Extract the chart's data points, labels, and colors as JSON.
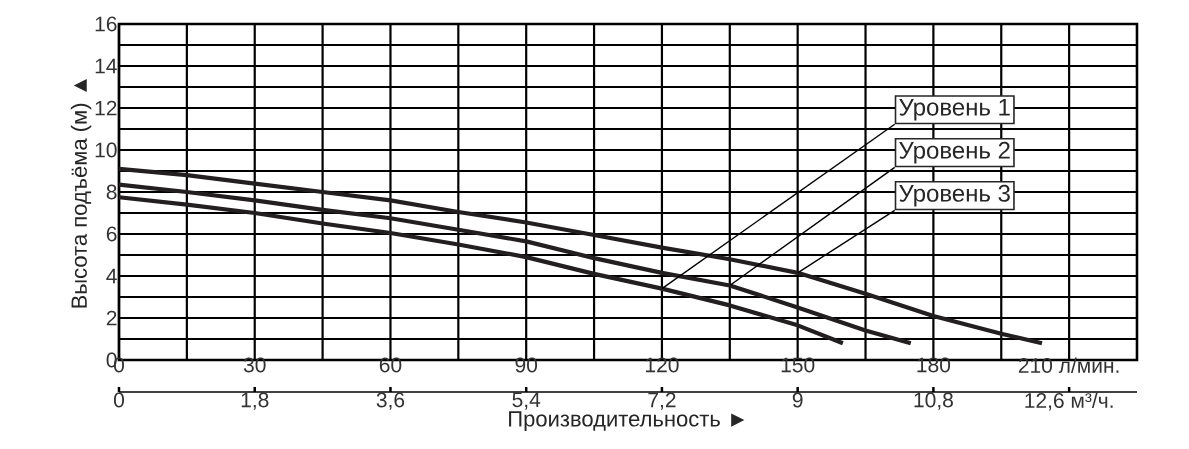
{
  "chart_data": {
    "type": "line",
    "xlabel": "Производительность ►",
    "ylabel": "Высота подъёма (м) ▲",
    "xlim": [
      0,
      225
    ],
    "xticks": [
      0,
      30,
      60,
      90,
      120,
      150,
      180,
      {
        "value": 210,
        "label": "210 л/мин."
      }
    ],
    "x2lim": [
      0,
      13.5
    ],
    "x2ticks": [
      0,
      {
        "value": 1.8,
        "label": "1,8"
      },
      {
        "value": 3.6,
        "label": "3,6"
      },
      {
        "value": 5.4,
        "label": "5,4"
      },
      {
        "value": 7.2,
        "label": "7,2"
      },
      9,
      {
        "value": 10.8,
        "label": "10,8"
      },
      {
        "value": 12.6,
        "label": "12,6 м³/ч."
      }
    ],
    "ylim": [
      0,
      16
    ],
    "yticks": [
      0,
      2,
      4,
      6,
      8,
      10,
      12,
      14,
      16
    ],
    "grid": true,
    "legend": "top right",
    "marker": "none",
    "line_style": "solid",
    "series": [
      {
        "name": "Уровень 1",
        "color": "#231f20",
        "x": [
          0,
          15,
          30,
          45,
          60,
          75,
          90,
          105,
          120,
          135,
          150,
          160
        ],
        "values": [
          7.75,
          7.4,
          7.0,
          6.5,
          6.05,
          5.5,
          4.9,
          4.1,
          3.4,
          2.6,
          1.65,
          0.8
        ]
      },
      {
        "name": "Уровень 2",
        "color": "#231f20",
        "x": [
          0,
          15,
          30,
          45,
          60,
          75,
          90,
          105,
          120,
          135,
          150,
          165,
          175
        ],
        "values": [
          8.35,
          8.0,
          7.6,
          7.15,
          6.75,
          6.2,
          5.65,
          4.85,
          4.15,
          3.55,
          2.5,
          1.4,
          0.8
        ]
      },
      {
        "name": "Уровень 3",
        "color": "#231f20",
        "x": [
          0,
          15,
          30,
          45,
          60,
          75,
          90,
          105,
          120,
          135,
          150,
          165,
          180,
          195,
          204
        ],
        "values": [
          9.1,
          8.8,
          8.4,
          8.0,
          7.6,
          7.05,
          6.55,
          5.95,
          5.35,
          4.8,
          4.15,
          3.15,
          2.1,
          1.25,
          0.8
        ]
      }
    ]
  }
}
